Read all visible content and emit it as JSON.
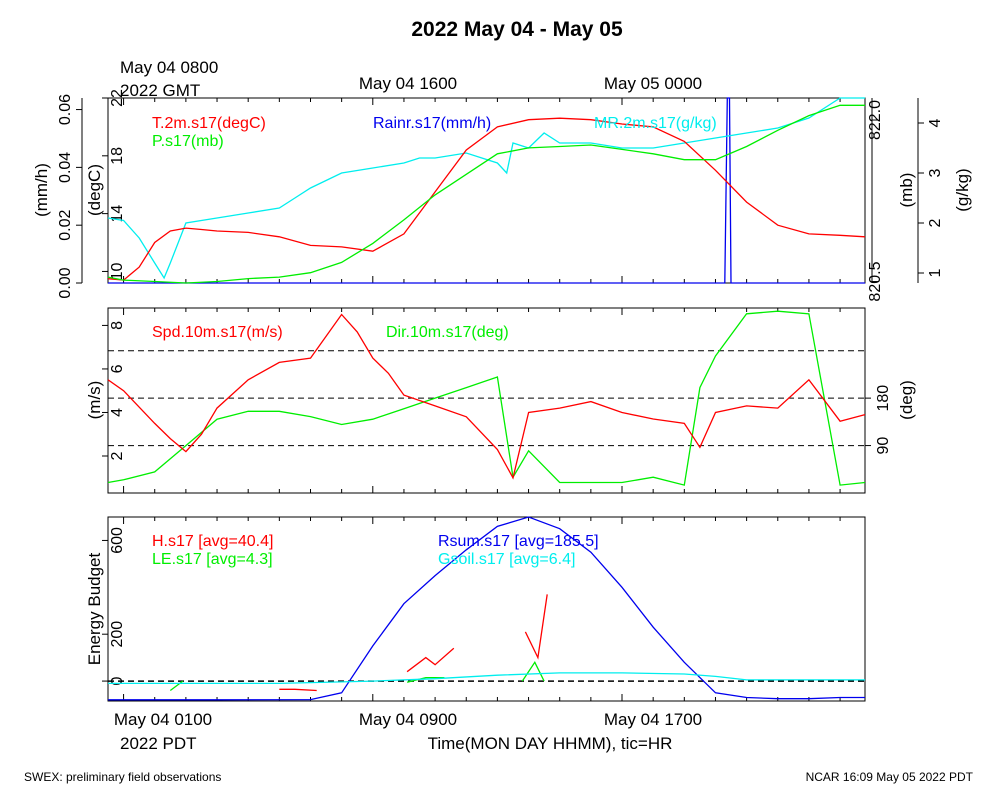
{
  "title": "2022 May 04 - May 05",
  "footer": {
    "left": "SWEX: preliminary field observations",
    "right": "NCAR 16:09 May 05 2022 PDT"
  },
  "top_axis": {
    "first": "May 04 0800",
    "first_tz": "2022 GMT",
    "labels": [
      "May 04 1600",
      "May 05 0000"
    ]
  },
  "bottom_axis": {
    "labels": [
      "May 04 0100",
      "May 04 0900",
      "May 04 1700"
    ],
    "first_tz": "2022 PDT",
    "xlabel": "Time(MON DAY HHMM), tic=HR"
  },
  "colors": {
    "red": "#ff0000",
    "green": "#00ee00",
    "blue": "#0000ee",
    "cyan": "#00eeee",
    "black": "#000000"
  },
  "chart_data": [
    {
      "type": "line",
      "panel": "state",
      "x_unit": "hours since May 04 0100 PDT",
      "xlim": [
        -0.5,
        23.8
      ],
      "y_axes": [
        {
          "label": "(degC)",
          "range": [
            9.2,
            22
          ],
          "ticks": [
            "10",
            "14",
            "18",
            "22"
          ],
          "tick_values": [
            10,
            14,
            18,
            22
          ],
          "side": "left"
        },
        {
          "label": "(mm/h)",
          "range": [
            0,
            0.064
          ],
          "ticks": [
            "0.00",
            "0.02",
            "0.04",
            "0.06"
          ],
          "tick_values": [
            0,
            0.02,
            0.04,
            0.06
          ],
          "side": "left"
        },
        {
          "label": "(mb)",
          "range": [
            820.59,
            821.85
          ],
          "ticks": [
            "820.5",
            "822.0"
          ],
          "tick_values": [
            820.6,
            821.7
          ],
          "side": "right"
        },
        {
          "label": "(g/kg)",
          "range": [
            0.8,
            4.5
          ],
          "ticks": [
            "1",
            "2",
            "3",
            "4"
          ],
          "tick_values": [
            1,
            2,
            3,
            4
          ],
          "side": "right"
        }
      ],
      "series": [
        {
          "name": "T.2m.s17(degC)",
          "color": "red",
          "axis": 0,
          "x": [
            -0.5,
            0,
            0.5,
            1,
            1.5,
            2,
            2.5,
            3,
            4,
            5,
            6,
            7,
            8,
            9,
            10,
            11,
            12,
            13,
            14,
            15,
            16,
            17,
            18,
            19,
            20,
            21,
            22,
            23,
            23.8
          ],
          "y": [
            9.5,
            9.4,
            10.3,
            12.0,
            12.8,
            13.0,
            12.9,
            12.8,
            12.7,
            12.4,
            11.8,
            11.7,
            11.4,
            12.6,
            15.5,
            18.4,
            20.0,
            20.5,
            20.6,
            20.5,
            20.2,
            20.0,
            19.0,
            17.0,
            14.8,
            13.2,
            12.6,
            12.5,
            12.4
          ]
        },
        {
          "name": "P.s17(mb)",
          "color": "green",
          "axis": 2,
          "x": [
            -0.5,
            0,
            1,
            2,
            3,
            4,
            5,
            6,
            7,
            8,
            9,
            10,
            11,
            12,
            13,
            14,
            15,
            16,
            17,
            18,
            19,
            20,
            21,
            22,
            23,
            23.8
          ],
          "y": [
            820.63,
            820.61,
            820.6,
            820.59,
            820.6,
            820.62,
            820.63,
            820.66,
            820.73,
            820.86,
            821.02,
            821.19,
            821.33,
            821.47,
            821.51,
            821.52,
            821.53,
            821.5,
            821.47,
            821.43,
            821.43,
            821.52,
            821.63,
            821.73,
            821.8,
            821.8
          ]
        },
        {
          "name": "MR.2m.s17(g/kg)",
          "color": "cyan",
          "axis": 3,
          "x": [
            -0.5,
            0,
            0.5,
            1,
            1.3,
            1.5,
            2,
            3,
            4,
            5,
            5.5,
            6,
            7,
            8,
            9,
            9.5,
            10,
            11,
            12,
            12.3,
            12.5,
            13,
            13.5,
            14,
            15,
            16,
            17,
            18,
            19,
            20,
            21,
            22,
            23,
            23.8
          ],
          "y": [
            2.1,
            2.05,
            1.7,
            1.2,
            0.9,
            1.2,
            2.0,
            2.1,
            2.2,
            2.3,
            2.5,
            2.7,
            3.0,
            3.1,
            3.2,
            3.3,
            3.3,
            3.4,
            3.2,
            3.0,
            3.6,
            3.5,
            3.8,
            3.6,
            3.6,
            3.5,
            3.5,
            3.6,
            3.7,
            3.8,
            3.9,
            4.1,
            4.5,
            4.5
          ]
        },
        {
          "name": "Rainr.s17(mm/h)",
          "color": "blue",
          "axis": 1,
          "x": [
            -0.5,
            19.3,
            19.38,
            19.45,
            19.5,
            23.8
          ],
          "y": [
            0,
            0,
            0.064,
            0.064,
            0,
            0
          ]
        }
      ]
    },
    {
      "type": "line",
      "panel": "wind",
      "x_unit": "hours since May 04 0100 PDT",
      "xlim": [
        -0.5,
        23.8
      ],
      "y_axes": [
        {
          "label": "(m/s)",
          "range": [
            0.3,
            8.8
          ],
          "ticks": [
            "2",
            "4",
            "6",
            "8"
          ],
          "tick_values": [
            2,
            4,
            6,
            8
          ],
          "side": "left"
        },
        {
          "label": "(deg)",
          "range": [
            0,
            351
          ],
          "ticks": [
            "90",
            "180"
          ],
          "tick_values": [
            90,
            180
          ],
          "side": "right"
        }
      ],
      "reference_lines_deg": [
        90,
        180,
        270
      ],
      "series": [
        {
          "name": "Spd.10m.s17(m/s)",
          "color": "red",
          "axis": 0,
          "x": [
            -0.5,
            0,
            1,
            1.5,
            2,
            2.5,
            3,
            4,
            5,
            6,
            7,
            7.5,
            8,
            8.5,
            9,
            10,
            11,
            12,
            12.5,
            13,
            14,
            15,
            16,
            17,
            18,
            18.5,
            19,
            20,
            21,
            22,
            23,
            23.8
          ],
          "y": [
            5.5,
            5.0,
            3.5,
            2.8,
            2.2,
            3.0,
            4.2,
            5.5,
            6.3,
            6.5,
            8.5,
            7.7,
            6.5,
            5.8,
            4.8,
            4.3,
            3.8,
            2.3,
            1.0,
            4.0,
            4.2,
            4.5,
            4.0,
            3.7,
            3.5,
            2.4,
            4.0,
            4.3,
            4.2,
            5.5,
            3.6,
            3.9
          ]
        },
        {
          "name": "Dir.10m.s17(deg)",
          "color": "green",
          "axis": 1,
          "x": [
            -0.5,
            0,
            1,
            2,
            3,
            4,
            5,
            6,
            7,
            8,
            9,
            10,
            11,
            12,
            12.5,
            13,
            14,
            15,
            16,
            17,
            18,
            18.5,
            19,
            20,
            21,
            22,
            23,
            23.8
          ],
          "y": [
            20,
            25,
            40,
            90,
            140,
            155,
            155,
            145,
            130,
            140,
            160,
            180,
            200,
            220,
            30,
            80,
            20,
            20,
            20,
            30,
            15,
            200,
            260,
            340,
            345,
            340,
            15,
            20
          ]
        }
      ]
    },
    {
      "type": "line",
      "panel": "energy",
      "x_unit": "hours since May 04 0100 PDT",
      "xlim": [
        -0.5,
        23.8
      ],
      "y_axes": [
        {
          "label": "Energy Budget",
          "range": [
            -85,
            700
          ],
          "ticks": [
            "0",
            "200",
            "600"
          ],
          "tick_values": [
            0,
            200,
            600
          ],
          "side": "left"
        }
      ],
      "reference_lines": [
        0
      ],
      "series": [
        {
          "name": "Rsum.s17",
          "annotation": "[avg=185.5]",
          "color": "blue",
          "x": [
            -0.5,
            3,
            6,
            7,
            8,
            9,
            10,
            11,
            12,
            13,
            14,
            15,
            16,
            17,
            18,
            19,
            20,
            21,
            22,
            23,
            23.8
          ],
          "y": [
            -80,
            -80,
            -79,
            -50,
            150,
            330,
            450,
            560,
            660,
            700,
            650,
            550,
            400,
            230,
            80,
            -50,
            -70,
            -75,
            -75,
            -70,
            -70
          ]
        },
        {
          "name": "H.s17",
          "annotation": "[avg=40.4]",
          "color": "red",
          "segments": [
            {
              "x": [
                5,
                5.5,
                6.2
              ],
              "y": [
                -35,
                -35,
                -40
              ]
            },
            {
              "x": [
                9.1,
                9.7,
                10.0,
                10.6
              ],
              "y": [
                40,
                100,
                70,
                140
              ]
            },
            {
              "x": [
                12.9,
                13.3,
                13.6
              ],
              "y": [
                210,
                100,
                370
              ]
            }
          ]
        },
        {
          "name": "LE.s17",
          "annotation": "[avg=4.3]",
          "color": "green",
          "segments": [
            {
              "x": [
                1.5,
                1.9
              ],
              "y": [
                -40,
                0
              ]
            },
            {
              "x": [
                9.1,
                9.7,
                10.3
              ],
              "y": [
                -5,
                15,
                15
              ]
            },
            {
              "x": [
                12.8,
                13.2,
                13.5
              ],
              "y": [
                0,
                80,
                0
              ]
            }
          ]
        },
        {
          "name": "Gsoil.s17",
          "annotation": "[avg=6.4]",
          "color": "cyan",
          "x": [
            -0.5,
            5,
            8,
            10,
            12,
            14,
            16,
            18,
            19,
            20,
            21,
            22,
            23,
            23.8
          ],
          "y": [
            -10,
            -10,
            0,
            10,
            25,
            35,
            35,
            30,
            20,
            5,
            5,
            5,
            5,
            5
          ]
        }
      ]
    }
  ]
}
